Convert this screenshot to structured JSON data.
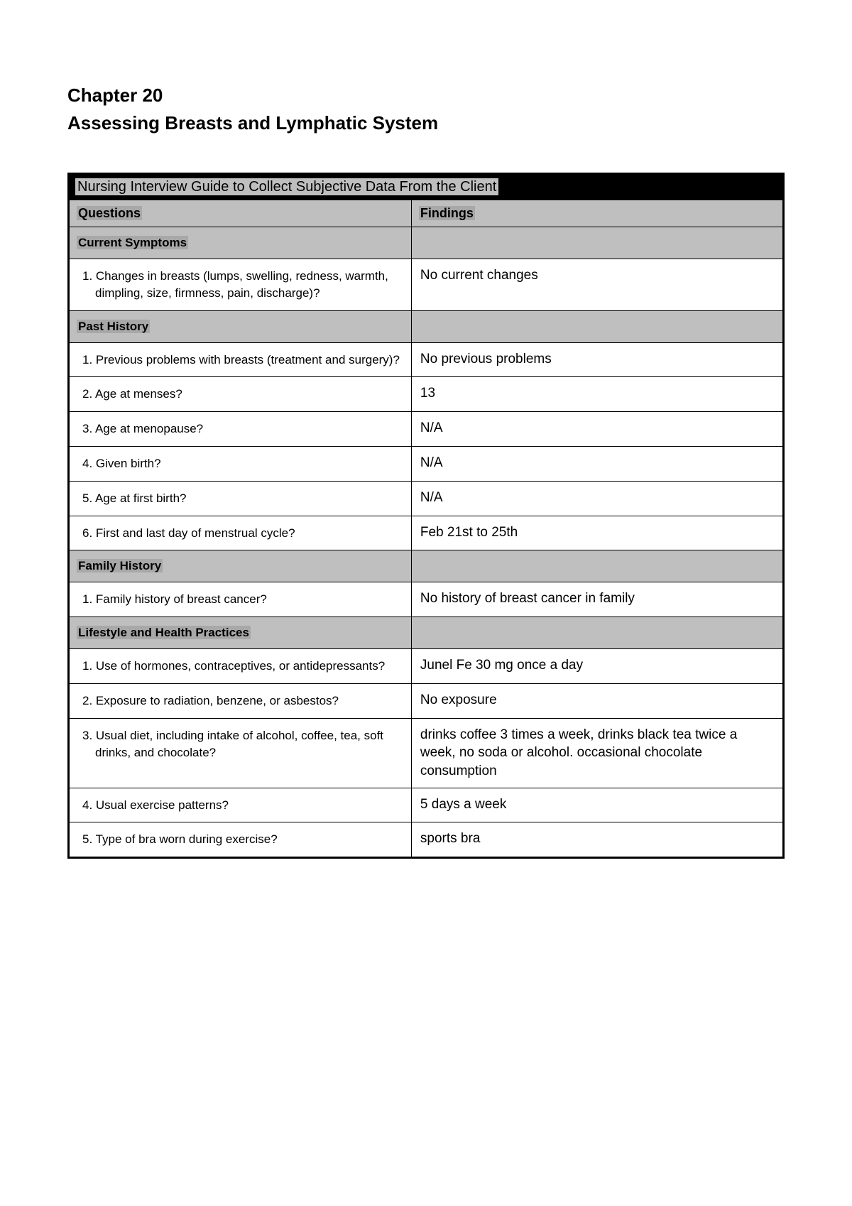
{
  "heading": {
    "chapter": "Chapter 20",
    "title": "Assessing Breasts and Lymphatic System"
  },
  "table": {
    "title": "Nursing Interview Guide to Collect Subjective Data From the Client",
    "headers": {
      "questions": "Questions",
      "findings": "Findings"
    },
    "sections": [
      {
        "label": "Current Symptoms",
        "rows": [
          {
            "num": "1.",
            "question": "Changes in breasts (lumps, swelling, redness, warmth, dimpling, size, firmness, pain, discharge)?",
            "finding": "No current changes"
          }
        ]
      },
      {
        "label": "Past History",
        "rows": [
          {
            "num": "1.",
            "question": "Previous problems with breasts (treatment and surgery)?",
            "finding": "No previous problems"
          },
          {
            "num": "2.",
            "question": "Age at menses?",
            "finding": "13"
          },
          {
            "num": "3.",
            "question": "Age at menopause?",
            "finding": "N/A"
          },
          {
            "num": "4.",
            "question": "Given birth?",
            "finding": "N/A"
          },
          {
            "num": "5.",
            "question": "Age at first birth?",
            "finding": "N/A"
          },
          {
            "num": "6.",
            "question": "First and last day of menstrual cycle?",
            "finding": "Feb 21st to 25th"
          }
        ]
      },
      {
        "label": "Family History",
        "rows": [
          {
            "num": "1.",
            "question": "Family history of breast cancer?",
            "finding": "No history of breast cancer in family"
          }
        ]
      },
      {
        "label": "Lifestyle and Health Practices",
        "rows": [
          {
            "num": "1.",
            "question": "Use of hormones, contraceptives, or antidepressants?",
            "finding": "Junel Fe 30 mg once a day"
          },
          {
            "num": "2.",
            "question": "Exposure to radiation, benzene, or asbestos?",
            "finding": "No exposure"
          },
          {
            "num": "3.",
            "question": "Usual diet, including intake of alcohol, coffee, tea, soft drinks, and chocolate?",
            "finding": "drinks coffee 3 times a week, drinks black tea twice a week, no soda or alcohol. occasional chocolate consumption"
          },
          {
            "num": "4.",
            "question": "Usual exercise patterns?",
            "finding": "5 days a week"
          },
          {
            "num": "5.",
            "question": "Type of bra worn during exercise?",
            "finding": "sports bra"
          }
        ]
      }
    ]
  }
}
